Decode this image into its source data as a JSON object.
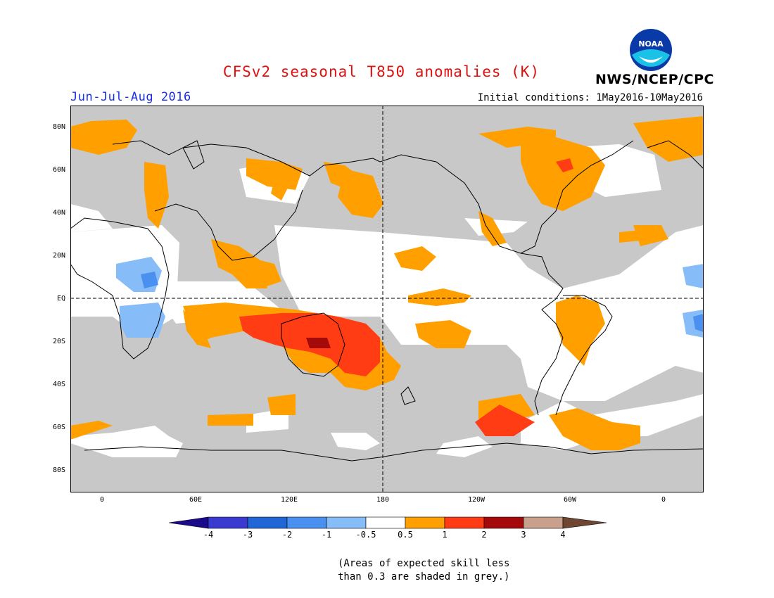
{
  "header": {
    "title": "CFSv2 seasonal T850 anomalies (K)",
    "agency": "NWS/NCEP/CPC",
    "season": "Jun-Jul-Aug 2016",
    "initial_conditions": "Initial conditions: 1May2016-10May2016",
    "logo_text": "NOAA"
  },
  "axes": {
    "lat_labels": [
      "80N",
      "60N",
      "40N",
      "20N",
      "EQ",
      "20S",
      "40S",
      "60S",
      "80S"
    ],
    "lon_labels": [
      "0",
      "60E",
      "120E",
      "180",
      "120W",
      "60W",
      "0"
    ]
  },
  "colorbar": {
    "labels": [
      "-4",
      "-3",
      "-2",
      "-1",
      "-0.5",
      "0.5",
      "1",
      "2",
      "3",
      "4"
    ],
    "colors": [
      "#1a0a8c",
      "#3a3ad0",
      "#2166d6",
      "#4a90f0",
      "#86bdf8",
      "#ffffff",
      "#ffa000",
      "#ff3c14",
      "#a50a0a",
      "#c8a08c",
      "#6e4632"
    ]
  },
  "note": {
    "line1": "(Areas of expected skill less",
    "line2": "than 0.3 are shaded in grey.)"
  },
  "colors": {
    "skill_grey": "#c8c8c8",
    "warm_1": "#ffa000",
    "warm_2": "#ff3c14",
    "warm_3": "#a50a0a",
    "cool_1": "#86bdf8",
    "cool_2": "#4a90f0",
    "title_red": "#e01010",
    "season_blue": "#1a2ee0"
  }
}
